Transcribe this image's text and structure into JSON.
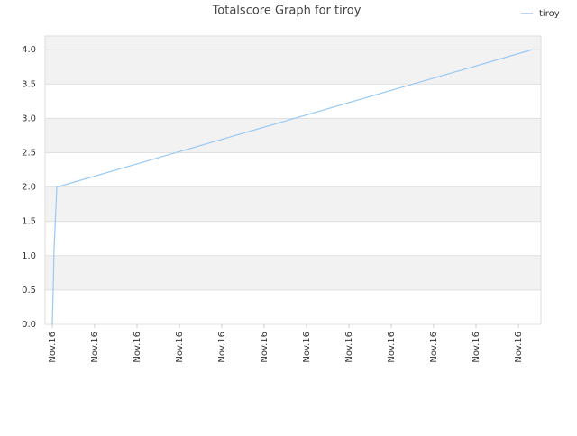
{
  "chart_data": {
    "type": "line",
    "title": "Totalscore Graph for tiroy",
    "x": [
      1.6,
      1.8,
      2.0,
      2.2,
      2.6,
      108
    ],
    "series": [
      {
        "name": "tiroy",
        "color": "#99c9f5",
        "values": [
          0,
          0.5,
          1.1,
          1.4,
          2.0,
          4.0
        ]
      }
    ],
    "xlim": [
      0,
      110
    ],
    "ylim": [
      0,
      4.2
    ],
    "xticks": [
      {
        "value": 1.6,
        "label": "Nov.16"
      },
      {
        "value": 11,
        "label": "Nov.16"
      },
      {
        "value": 20.4,
        "label": "Nov.16"
      },
      {
        "value": 29.8,
        "label": "Nov.16"
      },
      {
        "value": 39.2,
        "label": "Nov.16"
      },
      {
        "value": 48.6,
        "label": "Nov.16"
      },
      {
        "value": 58,
        "label": "Nov.16"
      },
      {
        "value": 67.4,
        "label": "Nov.16"
      },
      {
        "value": 76.8,
        "label": "Nov.16"
      },
      {
        "value": 86.2,
        "label": "Nov.16"
      },
      {
        "value": 95.6,
        "label": "Nov.16"
      },
      {
        "value": 105,
        "label": "Nov.16"
      }
    ],
    "yticks": [
      {
        "value": 0,
        "label": "0.0"
      },
      0.5,
      {
        "value": 1,
        "label": "1.0"
      },
      1.5,
      {
        "value": 2,
        "label": "2.0"
      },
      2.5,
      {
        "value": 3,
        "label": "3.0"
      },
      3.5,
      {
        "value": 4,
        "label": "4.0"
      }
    ],
    "grid": true,
    "legend": "top-right"
  }
}
